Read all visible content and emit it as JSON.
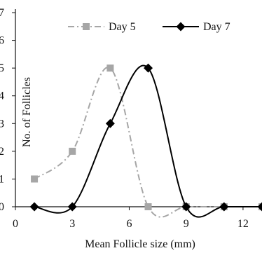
{
  "chart_data": {
    "type": "line",
    "xlabel": "Mean Follicle size (mm)",
    "ylabel": "No. of Follicles",
    "xlim": [
      0,
      13
    ],
    "ylim": [
      0,
      7
    ],
    "x_ticks": [
      "0",
      "3",
      "6",
      "9",
      "12"
    ],
    "y_ticks": [
      "0",
      "1",
      "2",
      "3",
      "4",
      "5",
      "6",
      "7"
    ],
    "grid": false,
    "legend_position": "top",
    "series": [
      {
        "name": "Day 5",
        "color": "#a6a6a6",
        "line_style": "dash-dot",
        "marker": "square",
        "x": [
          1,
          3,
          5,
          7,
          9,
          11,
          13
        ],
        "y": [
          1,
          2,
          5,
          0,
          0,
          0,
          0
        ]
      },
      {
        "name": "Day 7",
        "color": "#000000",
        "line_style": "solid",
        "marker": "diamond",
        "x": [
          1,
          3,
          5,
          7,
          9,
          11,
          13
        ],
        "y": [
          0,
          0,
          3,
          5,
          0,
          0,
          0
        ]
      }
    ]
  }
}
